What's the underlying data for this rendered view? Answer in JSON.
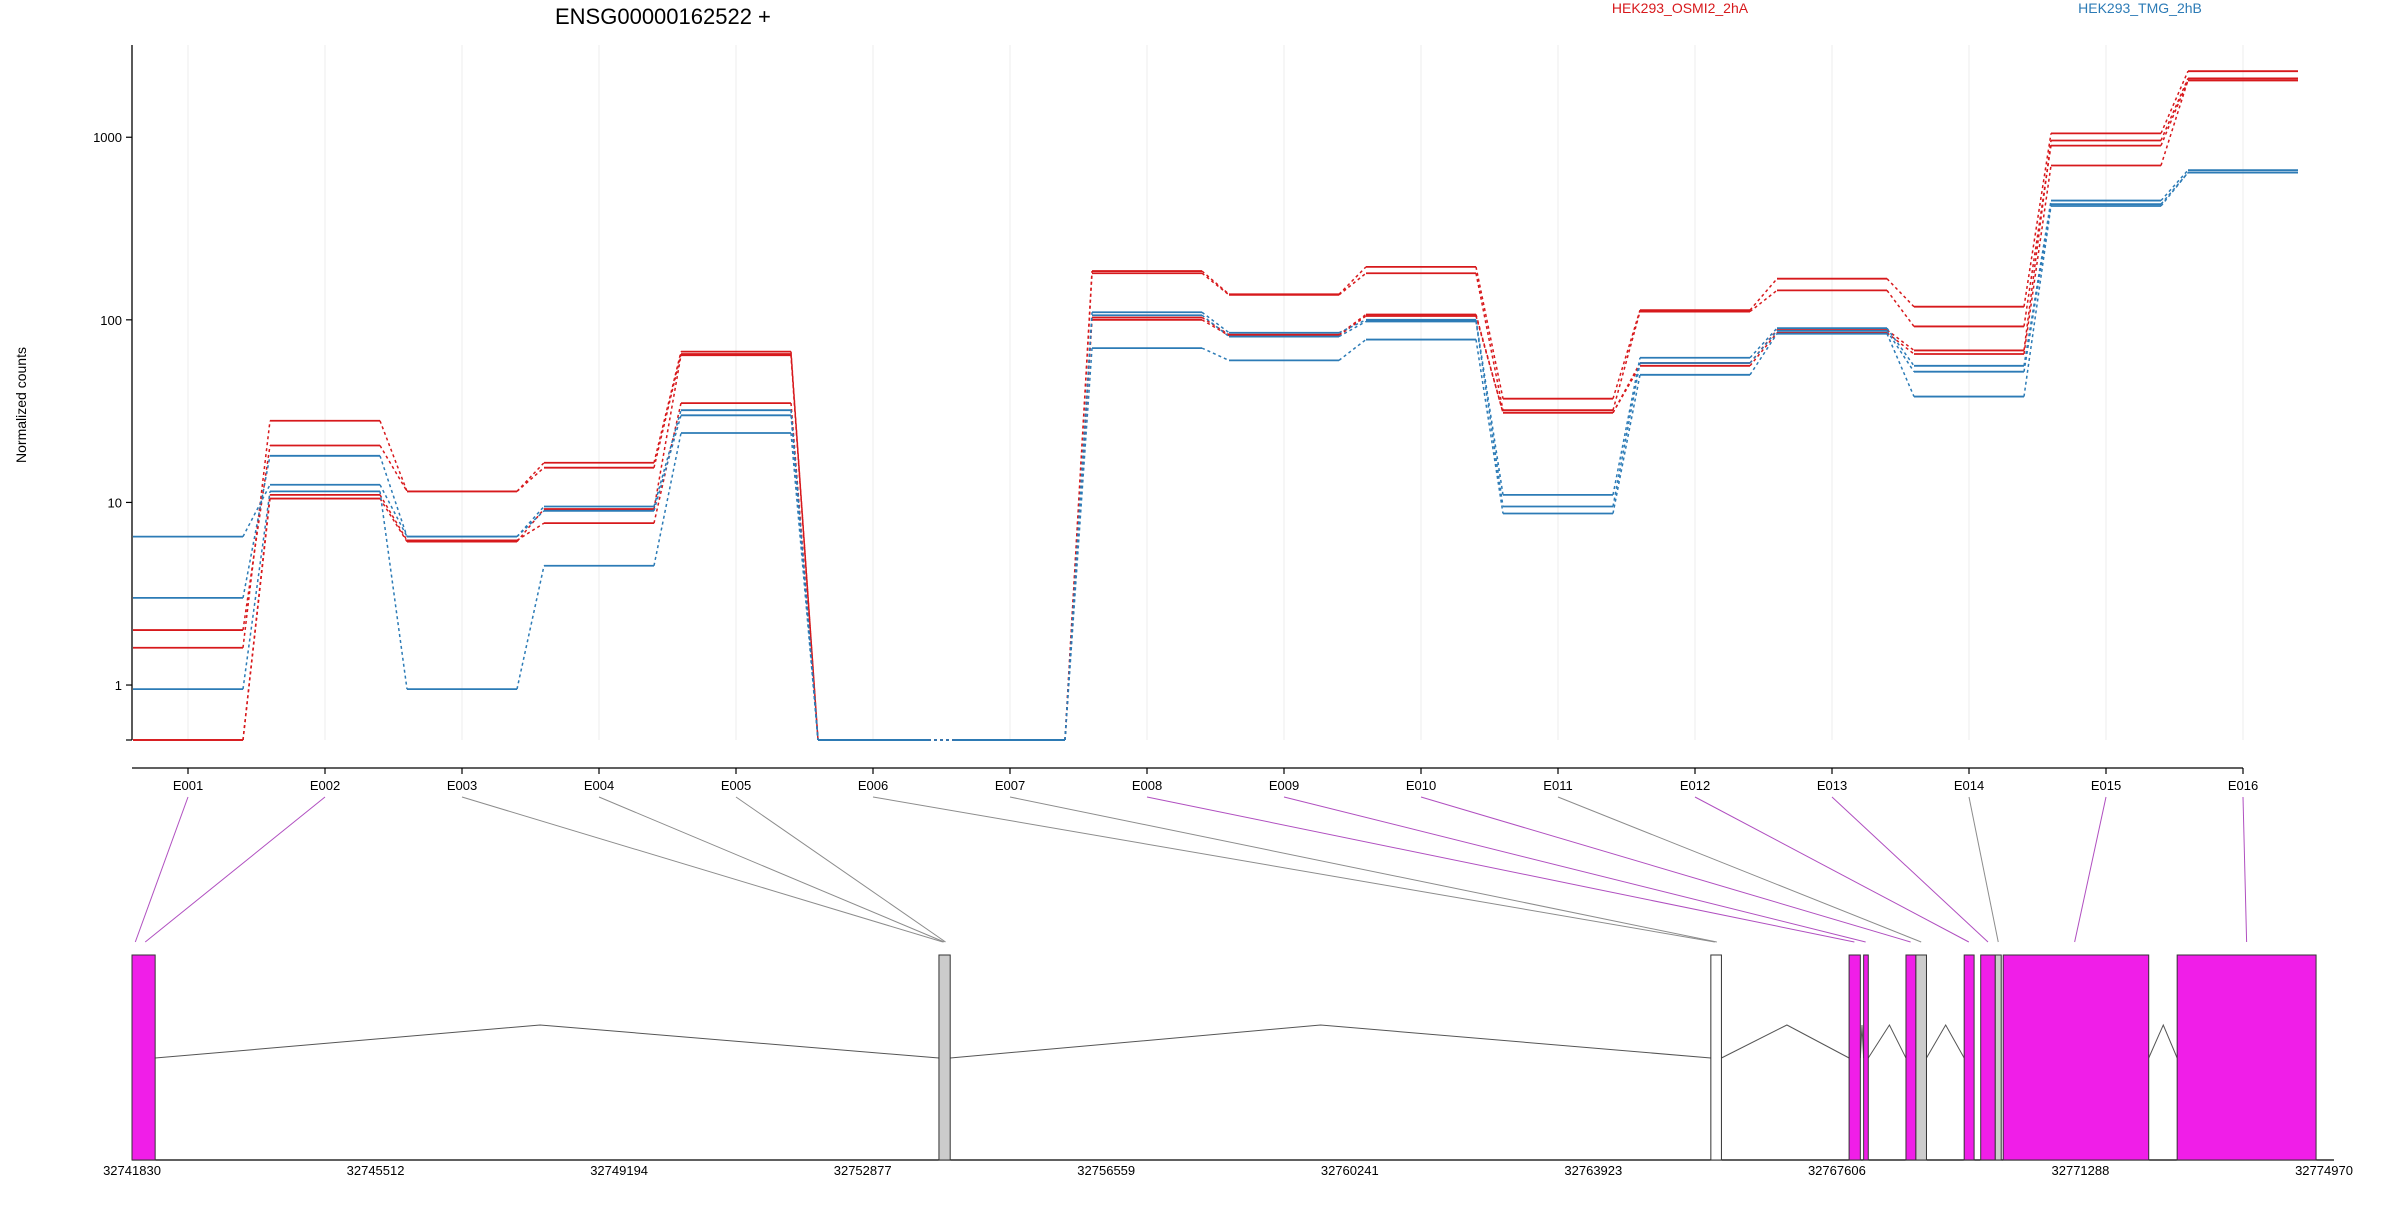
{
  "chart_data": {
    "type": "line",
    "title": "ENSG00000162522 +",
    "ylabel": "Normalized counts",
    "xlabel": "",
    "yscale": "log",
    "ylim": [
      0.5,
      3200
    ],
    "yticks": [
      1,
      10,
      100,
      1000
    ],
    "ytick_labels": [
      "1",
      "10",
      "100",
      "1000"
    ],
    "categories": [
      "E001",
      "E002",
      "E003",
      "E004",
      "E005",
      "E006",
      "E007",
      "E008",
      "E009",
      "E010",
      "E011",
      "E012",
      "E013",
      "E014",
      "E015",
      "E016"
    ],
    "grid": "vertical",
    "legend": [
      {
        "label": "HEK293_OSMI2_2hA",
        "color": "#d7191c"
      },
      {
        "label": "HEK293_TMG_2hB",
        "color": "#2c7bb6"
      }
    ],
    "series": [
      {
        "group": 0,
        "values": [
          1.6,
          28,
          11.5,
          16.5,
          67,
          0.5,
          0.5,
          185,
          138,
          195,
          37,
          113,
          168,
          118,
          1050,
          2300
        ]
      },
      {
        "group": 0,
        "values": [
          2.0,
          20.5,
          11.5,
          15.5,
          65,
          0.5,
          0.5,
          180,
          137,
          180,
          32,
          111,
          145,
          92,
          900,
          2050
        ]
      },
      {
        "group": 0,
        "values": [
          0.5,
          11,
          6.2,
          7.7,
          35,
          0.5,
          0.5,
          100,
          82,
          105,
          31,
          56,
          85,
          65,
          700,
          2050
        ]
      },
      {
        "group": 0,
        "values": [
          0.5,
          10.5,
          6.1,
          9.2,
          64,
          0.5,
          0.5,
          103,
          83,
          107,
          31,
          58,
          88,
          68,
          960,
          2100
        ]
      },
      {
        "group": 1,
        "values": [
          6.5,
          12.5,
          6.5,
          9.5,
          32,
          0.5,
          0.5,
          110,
          85,
          100,
          11,
          62,
          90,
          56,
          450,
          660
        ]
      },
      {
        "group": 1,
        "values": [
          3.0,
          18,
          6.5,
          9.0,
          30,
          0.5,
          0.5,
          106,
          81,
          98,
          9.5,
          58,
          87,
          52,
          430,
          640
        ]
      },
      {
        "group": 1,
        "values": [
          0.95,
          11.5,
          0.95,
          4.5,
          24,
          0.5,
          0.5,
          70,
          60,
          78,
          8.7,
          50,
          84,
          38,
          420,
          640
        ]
      }
    ]
  },
  "gene_model": {
    "coord_labels": [
      "32741830",
      "32745512",
      "32749194",
      "32752877",
      "32756559",
      "32760241",
      "32763923",
      "32767606",
      "32771288",
      "32774970"
    ],
    "start": 32741830,
    "end": 32774970,
    "exons": [
      {
        "start": 32741830,
        "end": 32742180,
        "color": "#f01ee8"
      },
      {
        "start": 32754030,
        "end": 32754200,
        "color": "#cccccc"
      },
      {
        "start": 32765700,
        "end": 32765860,
        "color": "#ffffff"
      },
      {
        "start": 32767790,
        "end": 32767960,
        "color": "#f01ee8"
      },
      {
        "start": 32768010,
        "end": 32768080,
        "color": "#f01ee8"
      },
      {
        "start": 32768650,
        "end": 32768800,
        "color": "#f01ee8"
      },
      {
        "start": 32768800,
        "end": 32768960,
        "color": "#cccccc"
      },
      {
        "start": 32769530,
        "end": 32769680,
        "color": "#f01ee8"
      },
      {
        "start": 32769780,
        "end": 32770000,
        "color": "#f01ee8"
      },
      {
        "start": 32770000,
        "end": 32770090,
        "color": "#cccccc"
      },
      {
        "start": 32770120,
        "end": 32772320,
        "color": "#f01ee8"
      },
      {
        "start": 32772750,
        "end": 32774850,
        "color": "#f01ee8"
      }
    ],
    "introns": [
      {
        "from": 32742180,
        "to": 32754030,
        "peak": 32748000
      },
      {
        "from": 32754200,
        "to": 32765700,
        "peak": 32759800
      },
      {
        "from": 32765860,
        "to": 32767790,
        "peak": 32766850
      },
      {
        "from": 32767960,
        "to": 32768010,
        "peak": 32767985
      },
      {
        "from": 32768080,
        "to": 32768650,
        "peak": 32768400
      },
      {
        "from": 32768960,
        "to": 32769530,
        "peak": 32769250
      },
      {
        "from": 32772320,
        "to": 32772750,
        "peak": 32772540
      }
    ],
    "links": [
      {
        "exon": "E001",
        "gene_pos": 32741880,
        "color": "#b04fc0"
      },
      {
        "exon": "E002",
        "gene_pos": 32742030,
        "color": "#b04fc0"
      },
      {
        "exon": "E003",
        "gene_pos": 32754090,
        "color": "#8c8c8c"
      },
      {
        "exon": "E004",
        "gene_pos": 32754110,
        "color": "#8c8c8c"
      },
      {
        "exon": "E005",
        "gene_pos": 32754130,
        "color": "#8c8c8c"
      },
      {
        "exon": "E006",
        "gene_pos": 32765760,
        "color": "#8c8c8c"
      },
      {
        "exon": "E007",
        "gene_pos": 32765790,
        "color": "#8c8c8c"
      },
      {
        "exon": "E008",
        "gene_pos": 32767870,
        "color": "#b04fc0"
      },
      {
        "exon": "E009",
        "gene_pos": 32768040,
        "color": "#b04fc0"
      },
      {
        "exon": "E010",
        "gene_pos": 32768720,
        "color": "#b04fc0"
      },
      {
        "exon": "E011",
        "gene_pos": 32768880,
        "color": "#8c8c8c"
      },
      {
        "exon": "E012",
        "gene_pos": 32769600,
        "color": "#b04fc0"
      },
      {
        "exon": "E013",
        "gene_pos": 32769890,
        "color": "#b04fc0"
      },
      {
        "exon": "E014",
        "gene_pos": 32770045,
        "color": "#8c8c8c"
      },
      {
        "exon": "E015",
        "gene_pos": 32771200,
        "color": "#b04fc0"
      },
      {
        "exon": "E016",
        "gene_pos": 32773800,
        "color": "#b04fc0"
      }
    ]
  }
}
